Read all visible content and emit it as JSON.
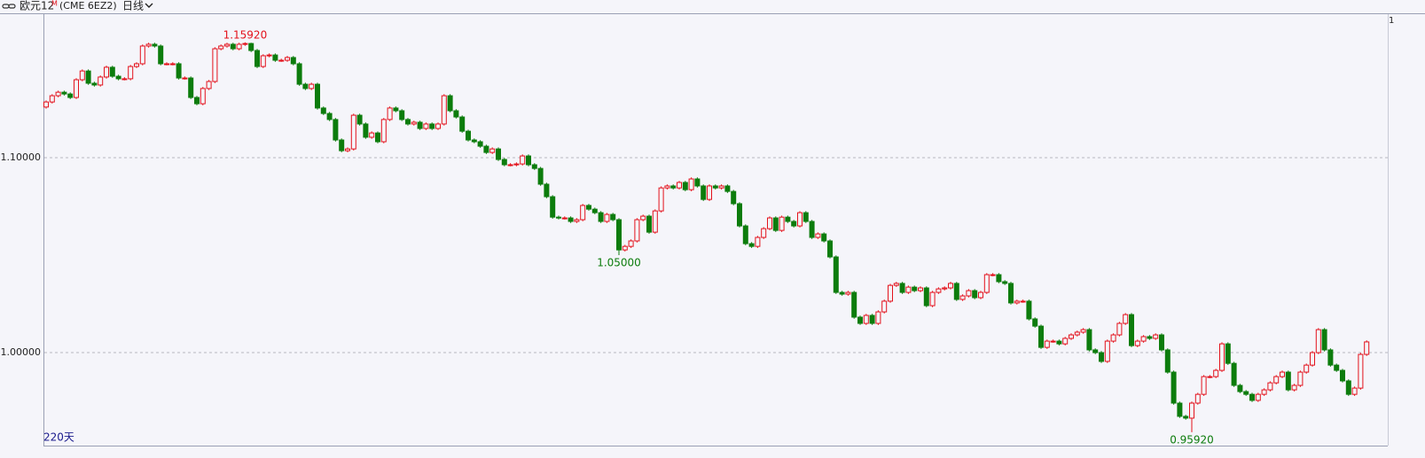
{
  "header": {
    "name": "欧元12",
    "superscript": "M",
    "code": "(CME 6EZ2)",
    "period": "日线"
  },
  "chart_data": {
    "type": "candlestick",
    "open": [
      1.126,
      1.1286,
      1.1318,
      1.1336,
      1.1327,
      1.1309,
      1.14,
      1.1445,
      1.1382,
      1.1373,
      1.1414,
      1.1464,
      1.1418,
      1.1405,
      1.1405,
      1.1468,
      1.1482,
      1.1573,
      1.1582,
      1.1573,
      1.1482,
      1.1482,
      1.1482,
      1.1409,
      1.1409,
      1.1309,
      1.1277,
      1.1355,
      1.1391,
      1.1559,
      1.1573,
      1.1582,
      1.1559,
      1.1582,
      1.1586,
      1.155,
      1.1468,
      1.1523,
      1.1527,
      1.15,
      1.15,
      1.1514,
      1.1482,
      1.1377,
      1.1355,
      1.1377,
      1.1255,
      1.1227,
      1.1196,
      1.1091,
      1.1036,
      1.1045,
      1.1218,
      1.1173,
      1.1105,
      1.1127,
      1.1082,
      1.1196,
      1.1255,
      1.1241,
      1.1196,
      1.1173,
      1.1182,
      1.115,
      1.1173,
      1.115,
      1.1173,
      1.1318,
      1.1241,
      1.1209,
      1.1136,
      1.1091,
      1.1082,
      1.1059,
      1.1027,
      1.1045,
      1.0991,
      1.0964,
      1.0964,
      1.0968,
      1.1009,
      1.0964,
      1.0945,
      1.0864,
      1.08,
      1.0695,
      1.0691,
      1.0691,
      1.0673,
      1.0682,
      1.0755,
      1.0736,
      1.0718,
      1.0673,
      1.0709,
      1.0682,
      1.0527,
      1.0545,
      1.0573,
      1.0682,
      1.07,
      1.0618,
      1.0727,
      1.0845,
      1.0855,
      1.0845,
      1.0873,
      1.0836,
      1.0891,
      1.0855,
      1.0786,
      1.0855,
      1.0845,
      1.0855,
      1.0827,
      1.0764,
      1.065,
      1.0559,
      1.0545,
      1.0591,
      1.0636,
      1.0691,
      1.0627,
      1.0695,
      1.0673,
      1.065,
      1.0718,
      1.0673,
      1.0591,
      1.0609,
      1.0573,
      1.0491,
      1.0309,
      1.03,
      1.0309,
      1.0182,
      1.015,
      1.0191,
      1.015,
      1.0209,
      1.0264,
      1.0345,
      1.0355,
      1.0309,
      1.0336,
      1.0318,
      1.0332,
      1.0241,
      1.0309,
      1.0327,
      1.0332,
      1.0355,
      1.0273,
      1.0291,
      1.0318,
      1.0282,
      1.0309,
      1.04,
      1.04,
      1.0364,
      1.0355,
      1.0255,
      1.0264,
      1.0264,
      1.0173,
      1.0136,
      1.0027,
      1.0059,
      1.0059,
      1.0045,
      1.0073,
      1.0091,
      1.0105,
      1.0118,
      1.0014,
      1.0,
      0.9955,
      1.0059,
      1.0091,
      1.015,
      1.0195,
      1.0036,
      1.0059,
      1.0082,
      1.0073,
      1.0091,
      1.0014,
      0.99,
      0.9741,
      0.9673,
      0.9664,
      0.9741,
      0.9786,
      0.9877,
      0.9877,
      0.9909,
      1.0045,
      0.9945,
      0.9832,
      0.98,
      0.9786,
      0.9755,
      0.9786,
      0.9809,
      0.9845,
      0.9877,
      0.99,
      0.9809,
      0.9832,
      0.99,
      0.9936,
      1.0,
      1.0118,
      1.0014,
      0.9936,
      0.9909,
      0.9855,
      0.9786,
      0.9818,
      0.9991
    ],
    "high": [
      1.1294,
      1.1326,
      1.1344,
      1.1344,
      1.1335,
      1.1408,
      1.1453,
      1.1453,
      1.139,
      1.1422,
      1.1472,
      1.1472,
      1.1426,
      1.1413,
      1.1476,
      1.149,
      1.1581,
      1.159,
      1.159,
      1.1581,
      1.149,
      1.149,
      1.149,
      1.1417,
      1.1417,
      1.1317,
      1.1363,
      1.1399,
      1.1567,
      1.1581,
      1.159,
      1.159,
      1.159,
      1.1592,
      1.159,
      1.1558,
      1.1531,
      1.1535,
      1.1535,
      1.1508,
      1.1522,
      1.1522,
      1.149,
      1.1385,
      1.1385,
      1.1385,
      1.1263,
      1.1235,
      1.1204,
      1.1099,
      1.1053,
      1.1226,
      1.1226,
      1.1181,
      1.1135,
      1.1135,
      1.1204,
      1.1263,
      1.1263,
      1.1249,
      1.1204,
      1.119,
      1.119,
      1.1181,
      1.1181,
      1.1181,
      1.1326,
      1.1326,
      1.1249,
      1.1217,
      1.1144,
      1.1099,
      1.109,
      1.1067,
      1.1053,
      1.1053,
      1.0999,
      1.0972,
      1.0976,
      1.1017,
      1.1017,
      1.0972,
      1.0953,
      1.0872,
      1.0808,
      1.0703,
      1.0699,
      1.0699,
      1.069,
      1.0763,
      1.0763,
      1.0744,
      1.0726,
      1.0717,
      1.0717,
      1.069,
      1.0553,
      1.0581,
      1.069,
      1.0708,
      1.0708,
      1.0735,
      1.0853,
      1.0863,
      1.0863,
      1.0881,
      1.0881,
      1.0899,
      1.0899,
      1.0863,
      1.0863,
      1.0863,
      1.0863,
      1.0863,
      1.0835,
      1.0772,
      1.0658,
      1.0567,
      1.0599,
      1.0644,
      1.0699,
      1.0699,
      1.0703,
      1.0703,
      1.0681,
      1.0726,
      1.0726,
      1.0681,
      1.0617,
      1.0617,
      1.0581,
      1.0499,
      1.0317,
      1.0317,
      1.0317,
      1.019,
      1.0199,
      1.0199,
      1.0217,
      1.0272,
      1.0353,
      1.0363,
      1.0363,
      1.0344,
      1.0344,
      1.034,
      1.034,
      1.0317,
      1.0335,
      1.034,
      1.0363,
      1.0363,
      1.0299,
      1.0326,
      1.0326,
      1.0317,
      1.0408,
      1.0408,
      1.0408,
      1.0372,
      1.0363,
      1.0272,
      1.0272,
      1.0272,
      1.0181,
      1.0144,
      1.0067,
      1.0067,
      1.0067,
      1.0081,
      1.0099,
      1.0113,
      1.0126,
      1.0126,
      1.0022,
      1.0008,
      1.0067,
      1.0099,
      1.0158,
      1.0203,
      1.0203,
      1.0067,
      1.009,
      1.009,
      1.0099,
      1.0099,
      1.0022,
      0.9908,
      0.9749,
      0.9681,
      0.9749,
      0.9794,
      0.9885,
      0.9885,
      0.9917,
      1.0053,
      1.0053,
      0.9953,
      0.984,
      0.9808,
      0.9794,
      0.9794,
      0.9817,
      0.9853,
      0.9885,
      0.9908,
      0.9908,
      0.984,
      0.9908,
      0.9944,
      1.0008,
      1.0126,
      1.0126,
      1.0022,
      0.9944,
      0.9917,
      0.9863,
      0.9826,
      0.9999,
      1.0063
    ],
    "low": [
      1.1252,
      1.1278,
      1.131,
      1.1319,
      1.1301,
      1.1301,
      1.1392,
      1.1374,
      1.1365,
      1.1365,
      1.1406,
      1.141,
      1.1397,
      1.1397,
      1.1397,
      1.146,
      1.1474,
      1.1565,
      1.1565,
      1.1474,
      1.1474,
      1.1474,
      1.1401,
      1.1401,
      1.1301,
      1.1269,
      1.1269,
      1.1347,
      1.1383,
      1.1551,
      1.1565,
      1.1551,
      1.1551,
      1.1574,
      1.1542,
      1.146,
      1.146,
      1.1515,
      1.1492,
      1.1492,
      1.1492,
      1.1474,
      1.1369,
      1.1347,
      1.1347,
      1.1247,
      1.1219,
      1.1188,
      1.1083,
      1.1028,
      1.1028,
      1.1037,
      1.1165,
      1.1097,
      1.1097,
      1.1074,
      1.1074,
      1.1188,
      1.1233,
      1.1188,
      1.1165,
      1.1165,
      1.1142,
      1.1142,
      1.1142,
      1.1142,
      1.1165,
      1.1233,
      1.1201,
      1.1128,
      1.1083,
      1.1074,
      1.1051,
      1.1019,
      1.1019,
      1.0983,
      1.0956,
      1.0956,
      1.0956,
      1.096,
      1.0956,
      1.0937,
      1.0856,
      1.0792,
      1.0687,
      1.0683,
      1.0683,
      1.0665,
      1.0665,
      1.0674,
      1.0728,
      1.071,
      1.0665,
      1.0665,
      1.0674,
      1.05,
      1.0519,
      1.0537,
      1.0565,
      1.0674,
      1.061,
      1.061,
      1.0719,
      1.0837,
      1.0837,
      1.0837,
      1.0828,
      1.0828,
      1.0847,
      1.0778,
      1.0778,
      1.0837,
      1.0837,
      1.0819,
      1.0756,
      1.0642,
      1.0551,
      1.0537,
      1.0537,
      1.0583,
      1.0628,
      1.0619,
      1.0619,
      1.0665,
      1.0642,
      1.0642,
      1.0665,
      1.0583,
      1.0583,
      1.0565,
      1.0483,
      1.0301,
      1.0292,
      1.0292,
      1.0174,
      1.0142,
      1.0142,
      1.0142,
      1.0142,
      1.0201,
      1.0256,
      1.0337,
      1.0301,
      1.0301,
      1.031,
      1.031,
      1.0233,
      1.0233,
      1.0301,
      1.0319,
      1.0324,
      1.0265,
      1.0265,
      1.0283,
      1.0274,
      1.0274,
      1.0301,
      1.0392,
      1.0356,
      1.0347,
      1.0247,
      1.0247,
      1.0256,
      1.0165,
      1.0128,
      1.0019,
      1.0019,
      1.0051,
      1.0037,
      1.0037,
      1.0065,
      1.0083,
      1.0097,
      1.0006,
      0.9992,
      0.9947,
      0.9947,
      1.0051,
      1.0083,
      1.0142,
      1.0028,
      1.0028,
      1.0051,
      1.0065,
      1.0065,
      1.0006,
      0.9892,
      0.9733,
      0.9665,
      0.9656,
      0.9592,
      0.9733,
      0.9778,
      0.9869,
      0.9869,
      0.9901,
      0.9937,
      0.9824,
      0.9792,
      0.9778,
      0.9747,
      0.9747,
      0.9778,
      0.9801,
      0.9837,
      0.9869,
      0.9801,
      0.9801,
      0.9824,
      0.9892,
      0.9928,
      0.9992,
      1.0006,
      0.9928,
      0.9901,
      0.9847,
      0.9778,
      0.9778,
      0.981,
      0.9983
    ],
    "close": [
      1.1286,
      1.1318,
      1.1336,
      1.1327,
      1.1309,
      1.14,
      1.1445,
      1.1382,
      1.1373,
      1.1414,
      1.1464,
      1.1418,
      1.1405,
      1.1405,
      1.1468,
      1.1482,
      1.1573,
      1.1582,
      1.1573,
      1.1482,
      1.1482,
      1.1482,
      1.1409,
      1.1409,
      1.1309,
      1.1277,
      1.1355,
      1.1391,
      1.1559,
      1.1573,
      1.1582,
      1.1559,
      1.1582,
      1.1586,
      1.155,
      1.1468,
      1.1523,
      1.1527,
      1.15,
      1.15,
      1.1514,
      1.1482,
      1.1377,
      1.1355,
      1.1377,
      1.1255,
      1.1227,
      1.1196,
      1.1091,
      1.1036,
      1.1045,
      1.1218,
      1.1173,
      1.1105,
      1.1127,
      1.1082,
      1.1196,
      1.1255,
      1.1241,
      1.1196,
      1.1173,
      1.1182,
      1.115,
      1.1173,
      1.115,
      1.1173,
      1.1318,
      1.1241,
      1.1209,
      1.1136,
      1.1091,
      1.1082,
      1.1059,
      1.1027,
      1.1045,
      1.0991,
      1.0964,
      1.0964,
      1.0968,
      1.1009,
      1.0964,
      1.0945,
      1.0864,
      1.08,
      1.0695,
      1.0691,
      1.0691,
      1.0673,
      1.0682,
      1.0755,
      1.0736,
      1.0718,
      1.0673,
      1.0709,
      1.0682,
      1.0527,
      1.0545,
      1.0573,
      1.0682,
      1.07,
      1.0618,
      1.0727,
      1.0845,
      1.0855,
      1.0845,
      1.0873,
      1.0836,
      1.0891,
      1.0855,
      1.0786,
      1.0855,
      1.0845,
      1.0855,
      1.0827,
      1.0764,
      1.065,
      1.0559,
      1.0545,
      1.0591,
      1.0636,
      1.0691,
      1.0627,
      1.0695,
      1.0673,
      1.065,
      1.0718,
      1.0673,
      1.0591,
      1.0609,
      1.0573,
      1.0491,
      1.0309,
      1.03,
      1.0309,
      1.0182,
      1.015,
      1.0191,
      1.015,
      1.0209,
      1.0264,
      1.0345,
      1.0355,
      1.0309,
      1.0336,
      1.0318,
      1.0332,
      1.0241,
      1.0309,
      1.0327,
      1.0332,
      1.0355,
      1.0273,
      1.0291,
      1.0318,
      1.0282,
      1.0309,
      1.04,
      1.04,
      1.0364,
      1.0355,
      1.0255,
      1.0264,
      1.0264,
      1.0173,
      1.0136,
      1.0027,
      1.0059,
      1.0059,
      1.0045,
      1.0073,
      1.0091,
      1.0105,
      1.0118,
      1.0014,
      1.0,
      0.9955,
      1.0059,
      1.0091,
      1.015,
      1.0195,
      1.0036,
      1.0059,
      1.0082,
      1.0073,
      1.0091,
      1.0014,
      0.99,
      0.9741,
      0.9673,
      0.9664,
      0.9741,
      0.9786,
      0.9877,
      0.9877,
      0.9909,
      1.0045,
      0.9945,
      0.9832,
      0.98,
      0.9786,
      0.9755,
      0.9786,
      0.9809,
      0.9845,
      0.9877,
      0.99,
      0.9809,
      0.9832,
      0.99,
      0.9936,
      1.0,
      1.0118,
      1.0014,
      0.9936,
      0.9909,
      0.9855,
      0.9786,
      0.9818,
      0.9991,
      1.0055
    ],
    "ylim": [
      0.9523,
      1.1741
    ],
    "yticks": [
      {
        "value": 1.0,
        "label": "1.00000"
      },
      {
        "value": 1.1,
        "label": "1.10000"
      }
    ],
    "grid": true,
    "up_color": "#e3111b",
    "down_color": "#0c7c0c",
    "annotations": [
      {
        "value": 1.1592,
        "label": "1.15920",
        "color": "#e3111b"
      },
      {
        "value": 1.05,
        "label": "1.05000",
        "color": "#0c7c0c"
      },
      {
        "value": 0.9592,
        "label": "0.95920",
        "color": "#0c7c0c"
      }
    ],
    "bar_count_label": "220天",
    "corner_label": "1"
  }
}
